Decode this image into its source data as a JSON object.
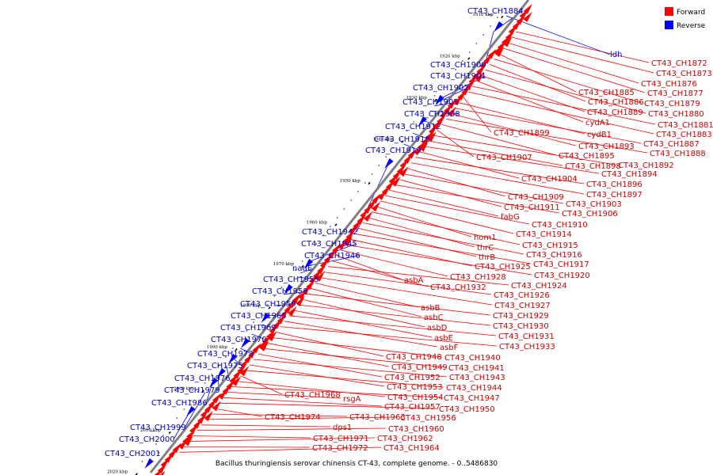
{
  "caption": "Bacillus thuringiensis serovar chinensis CT-43, complete genome. - 0..5486830",
  "legend": [
    {
      "label": "Forward",
      "color": "#ff0000"
    },
    {
      "label": "Reverse",
      "color": "#0000ff"
    }
  ],
  "colors": {
    "forward": "#ff0000",
    "reverse": "#0000ff",
    "backbone": "#808080"
  },
  "ticks": [
    "1910 kbp",
    "1920 kbp",
    "1930 kbp",
    "1940 kbp",
    "1950 kbp",
    "1960 kbp",
    "1970 kbp",
    "1980 kbp",
    "1990 kbp",
    "2000 kbp",
    "2010 kbp",
    "2020 kbp"
  ],
  "forward_labels": [
    "CT43_CH1872",
    "CT43_CH1873",
    "CT43_CH1876",
    "CT43_CH1877",
    "CT43_CH1885",
    "CT43_CH1879",
    "CT43_CH1886",
    "CT43_CH1880",
    "CT43_CH1889",
    "cydA1",
    "CT43_CH1881",
    "CT43_CH1883",
    "CT43_CH1899",
    "cydB1",
    "CT43_CH1887",
    "CT43_CH1893",
    "CT43_CH1888",
    "CT43_CH1895",
    "CT43_CH1907",
    "CT43_CH1892",
    "CT43_CH1898",
    "CT43_CH1894",
    "CT43_CH1904",
    "CT43_CH1896",
    "CT43_CH1897",
    "CT43_CH1909",
    "CT43_CH1903",
    "CT43_CH1911",
    "CT43_CH1906",
    "fabG",
    "CT43_CH1910",
    "CT43_CH1914",
    "hom1",
    "CT43_CH1915",
    "thrC",
    "CT43_CH1916",
    "thrB",
    "CT43_CH1917",
    "CT43_CH1925",
    "CT43_CH1920",
    "CT43_CH1928",
    "asbA",
    "CT43_CH1932",
    "CT43_CH1924",
    "CT43_CH1926",
    "CT43_CH1927",
    "asbB",
    "asbC",
    "CT43_CH1929",
    "asbD",
    "CT43_CH1930",
    "asbE",
    "CT43_CH1931",
    "asbF",
    "CT43_CH1933",
    "CT43_CH1948",
    "CT43_CH1940",
    "CT43_CH1949",
    "CT43_CH1941",
    "CT43_CH1952",
    "CT43_CH1943",
    "CT43_CH1953",
    "CT43_CH1944",
    "CT43_CH1968",
    "CT43_CH1954",
    "CT43_CH1947",
    "rsgA",
    "CT43_CH1957",
    "CT43_CH1950",
    "CT43_CH1974",
    "CT43_CH1963",
    "CT43_CH1956",
    "dps1",
    "CT43_CH1960",
    "CT43_CH1971",
    "CT43_CH1962",
    "CT43_CH1972",
    "CT43_CH1964"
  ],
  "reverse_labels": [
    "CT43_CH1884",
    "ldh",
    "CT43_CH1900",
    "CT43_CH1901",
    "CT43_CH1902",
    "CT43_CH1905",
    "CT43_CH1908",
    "CT43_CH1912",
    "CT43_CH1918",
    "CT43_CH1919",
    "CT43_CH1942",
    "CT43_CH1945",
    "CT43_CH1946",
    "nadE",
    "CT43_CH1955",
    "CT43_CH1958",
    "CT43_CH1959",
    "CT43_CH1965",
    "CT43_CH1969",
    "CT43_CH1970",
    "CT43_CH1973",
    "CT43_CH1975",
    "CT43_CH1976",
    "CT43_CH1979",
    "CT43_CH1986",
    "CT43_CH1999",
    "CT43_CH2000",
    "CT43_CH2001"
  ]
}
